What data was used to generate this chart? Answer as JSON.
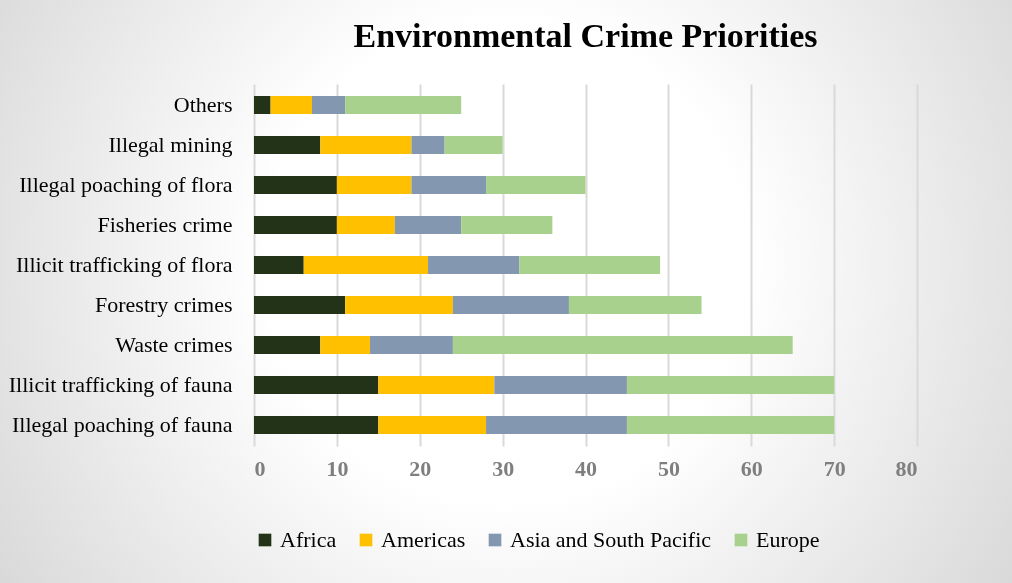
{
  "chart_data": {
    "type": "bar",
    "orientation": "horizontal",
    "stacked": true,
    "title": "Environmental Crime Priorities",
    "categories": [
      "Others",
      "Illegal mining",
      "Illegal poaching of flora",
      "Fisheries crime",
      "Illicit trafficking of flora",
      "Forestry crimes",
      "Waste crimes",
      "Illicit trafficking of fauna",
      "Illegal poaching of fauna"
    ],
    "series": [
      {
        "name": "Africa",
        "color": "#233318",
        "values": [
          2,
          8,
          10,
          10,
          6,
          11,
          8,
          15,
          15
        ]
      },
      {
        "name": "Americas",
        "color": "#ffc000",
        "values": [
          5,
          11,
          9,
          7,
          15,
          13,
          6,
          14,
          13
        ]
      },
      {
        "name": "Asia and South Pacific",
        "color": "#8497b0",
        "values": [
          4,
          4,
          9,
          8,
          11,
          14,
          10,
          16,
          17
        ]
      },
      {
        "name": "Europe",
        "color": "#a9d18e",
        "values": [
          14,
          7,
          12,
          11,
          17,
          16,
          41,
          25,
          25
        ]
      }
    ],
    "xlim": [
      0,
      80
    ],
    "xticks": [
      0,
      10,
      20,
      30,
      40,
      50,
      60,
      70,
      80
    ],
    "grid": "x",
    "legend": "bottom"
  }
}
